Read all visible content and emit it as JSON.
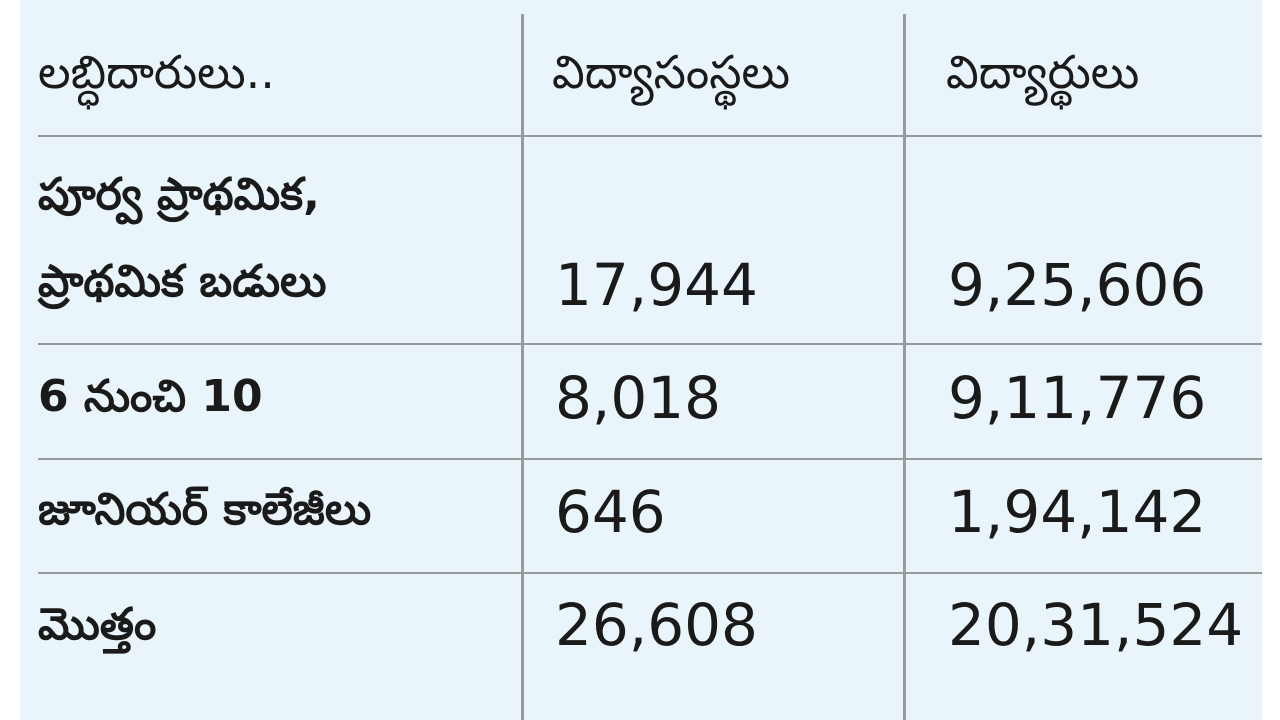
{
  "table": {
    "header": [
      "లబ్ధిదారులు..",
      "విద్యాసంస్థలు",
      "విద్యార్థులు"
    ],
    "rows": [
      [
        [
          "పూర్వ ప్రాథమిక,",
          "ప్రాథమిక బడులు"
        ],
        "17,944",
        "9,25,606"
      ],
      [
        "6 నుంచి 10",
        "8,018",
        "9,11,776"
      ],
      [
        "జూనియర్ కాలేజీలు",
        "646",
        "1,94,142"
      ],
      [
        "మొత్తం",
        "26,608",
        "20,31,524"
      ]
    ]
  }
}
